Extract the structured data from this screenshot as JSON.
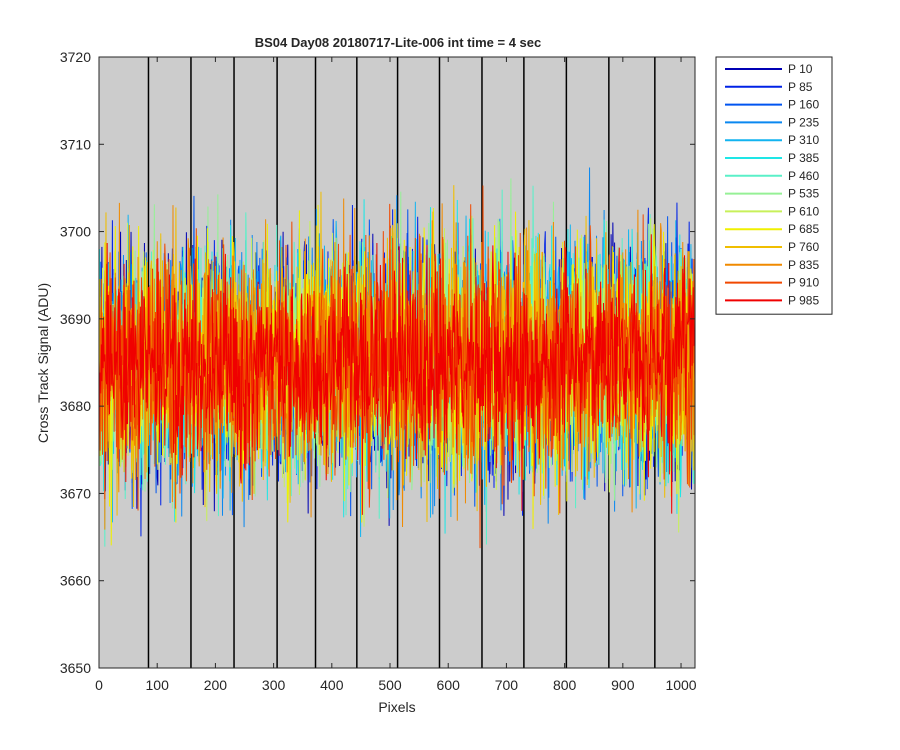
{
  "chart_data": {
    "type": "line",
    "title": "BS04 Day08 20180717-Lite-006 int time = 4 sec",
    "xlabel": "Pixels",
    "ylabel": "Cross Track Signal (ADU)",
    "xlim": [
      0,
      1024
    ],
    "ylim": [
      3650,
      3720
    ],
    "xticks": [
      "0",
      "100",
      "200",
      "300",
      "400",
      "500",
      "600",
      "700",
      "800",
      "900",
      "1000"
    ],
    "yticks": [
      "3650",
      "3660",
      "3670",
      "3680",
      "3690",
      "3700",
      "3710",
      "3720"
    ],
    "background": "#cccccc",
    "grid": false,
    "legend_position": "outside-top-right",
    "band_boundaries": [
      85,
      158,
      232,
      306,
      372,
      443,
      513,
      585,
      658,
      730,
      803,
      876,
      955
    ],
    "signal_model": {
      "mean": 3685,
      "range_min": 3655,
      "range_max": 3717,
      "points_per_series": 1024
    },
    "series": [
      {
        "name": "P 10",
        "color": "#0000b4"
      },
      {
        "name": "P 85",
        "color": "#0022e6"
      },
      {
        "name": "P 160",
        "color": "#0055f0"
      },
      {
        "name": "P 235",
        "color": "#0a88f0"
      },
      {
        "name": "P 310",
        "color": "#12b4f0"
      },
      {
        "name": "P 385",
        "color": "#1ee6e6"
      },
      {
        "name": "P 460",
        "color": "#5af0c8"
      },
      {
        "name": "P 535",
        "color": "#96f096"
      },
      {
        "name": "P 610",
        "color": "#c8f05a"
      },
      {
        "name": "P 685",
        "color": "#f0f000"
      },
      {
        "name": "P 760",
        "color": "#f0be00"
      },
      {
        "name": "P 835",
        "color": "#f08a00"
      },
      {
        "name": "P 910",
        "color": "#f04800"
      },
      {
        "name": "P 985",
        "color": "#f00000"
      }
    ]
  }
}
